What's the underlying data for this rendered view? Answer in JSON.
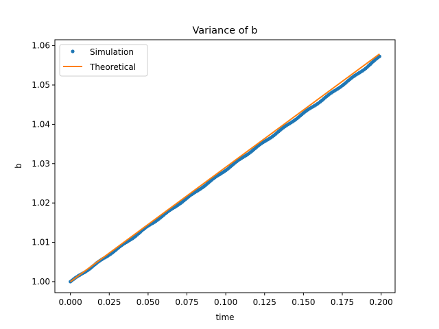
{
  "chart_data": {
    "type": "line",
    "title": "Variance of b",
    "xlabel": "time",
    "ylabel": "b",
    "xlim": [
      -0.01,
      0.209
    ],
    "ylim": [
      0.9972,
      1.0615
    ],
    "grid": false,
    "legend_position": "top-left",
    "x_ticks": [
      "0.000",
      "0.025",
      "0.050",
      "0.075",
      "0.100",
      "0.125",
      "0.150",
      "0.175",
      "0.200"
    ],
    "y_ticks": [
      "1.00",
      "1.01",
      "1.02",
      "1.03",
      "1.04",
      "1.05",
      "1.06"
    ],
    "series": [
      {
        "name": "Simulation",
        "style": "markers",
        "color": "#1f77b4",
        "x": [
          0.0,
          0.01,
          0.02,
          0.03,
          0.04,
          0.05,
          0.06,
          0.07,
          0.08,
          0.09,
          0.1,
          0.11,
          0.12,
          0.13,
          0.14,
          0.15,
          0.16,
          0.17,
          0.18,
          0.19,
          0.199
        ],
        "values": [
          1.0,
          1.0027,
          1.0055,
          1.0083,
          1.0111,
          1.0141,
          1.0169,
          1.0198,
          1.0226,
          1.0255,
          1.0284,
          1.0313,
          1.0342,
          1.037,
          1.0399,
          1.0428,
          1.0456,
          1.0485,
          1.0514,
          1.0543,
          1.0572
        ]
      },
      {
        "name": "Theoretical",
        "style": "line",
        "color": "#ff7f0e",
        "x": [
          0.0,
          0.199
        ],
        "values": [
          1.0,
          1.0579
        ]
      }
    ]
  }
}
